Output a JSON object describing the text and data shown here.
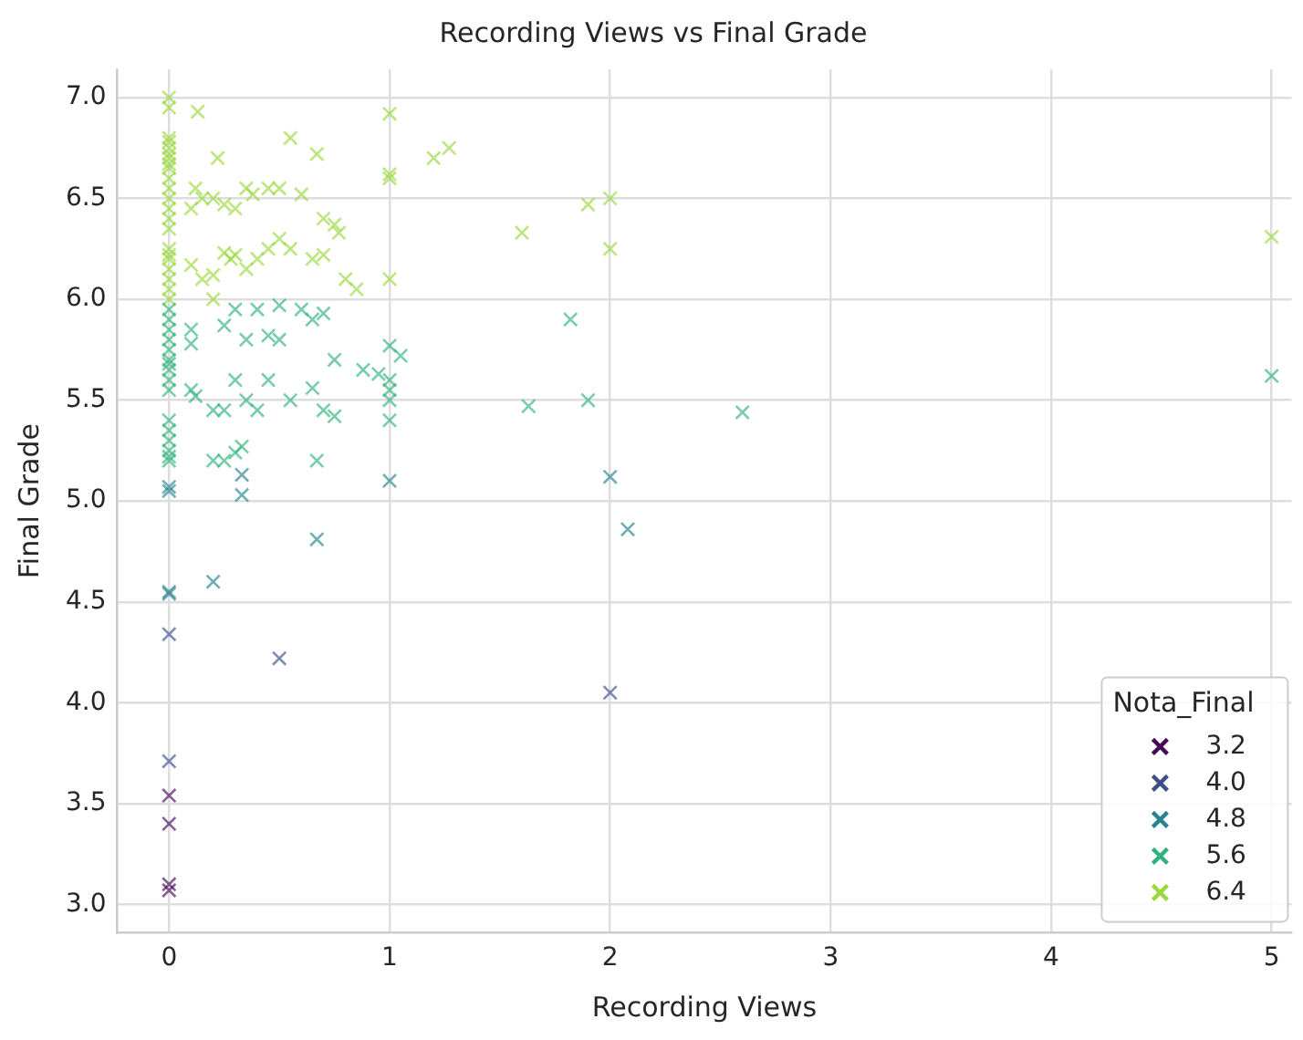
{
  "chart_data": {
    "type": "scatter",
    "title": "Recording Views vs Final Grade",
    "xlabel": "Recording Views",
    "ylabel": "Final Grade",
    "legend_title": "Nota_Final",
    "legend": "bottom right",
    "marker": "cross",
    "grid": true,
    "xlim": [
      -0.235,
      5.09
    ],
    "xticks": [
      0,
      1,
      2,
      3,
      4,
      5
    ],
    "ylim": [
      2.86,
      7.14
    ],
    "yticks": [
      {
        "value": 3,
        "label": "3.0"
      },
      3.5,
      {
        "value": 4,
        "label": "4.0"
      },
      4.5,
      {
        "value": 5,
        "label": "5.0"
      },
      5.5,
      {
        "value": 6,
        "label": "6.0"
      },
      6.5,
      {
        "value": 7,
        "label": "7.0"
      }
    ],
    "series": [
      {
        "name": "3.2",
        "color": "#46075a",
        "x": [
          0,
          0,
          0,
          0
        ],
        "values": [
          3.54,
          3.4,
          3.1,
          3.07
        ]
      },
      {
        "name": "4.0",
        "color": "#3c4f8a",
        "x": [
          0,
          0,
          0.5,
          2
        ],
        "values": [
          4.34,
          3.71,
          4.22,
          4.05
        ]
      },
      {
        "name": "4.8",
        "color": "#26828e",
        "x": [
          0,
          0,
          0,
          0,
          0.2,
          0.67,
          0.33,
          0.33,
          1,
          2,
          2.08
        ],
        "values": [
          5.07,
          5.05,
          4.55,
          4.54,
          4.6,
          4.81,
          5.13,
          5.03,
          5.1,
          5.12,
          4.86
        ]
      },
      {
        "name": "5.6",
        "color": "#31b27c",
        "x": [
          0,
          0,
          0,
          0,
          0,
          0,
          0,
          0,
          0,
          0,
          0,
          0,
          0,
          0,
          0,
          0,
          0.25,
          0.3,
          0.35,
          0.4,
          0.45,
          0.5,
          0.6,
          0.65,
          0.7,
          0.75,
          0.88,
          0.95,
          0.1,
          0.1,
          0.1,
          0.12,
          0.2,
          0.25,
          0.3,
          0.35,
          0.4,
          0.45,
          0.5,
          0.55,
          0.65,
          0.7,
          0.75,
          0.2,
          0.25,
          0.3,
          0.33,
          0.67,
          1,
          1,
          1,
          1,
          1,
          1.05,
          1.63,
          1.82,
          1.9,
          2.6,
          5
        ],
        "values": [
          5.95,
          5.9,
          5.85,
          5.8,
          5.75,
          5.7,
          5.68,
          5.65,
          5.6,
          5.55,
          5.4,
          5.35,
          5.3,
          5.25,
          5.22,
          5.2,
          5.87,
          5.95,
          5.8,
          5.95,
          5.82,
          5.97,
          5.95,
          5.9,
          5.93,
          5.7,
          5.65,
          5.63,
          5.85,
          5.78,
          5.55,
          5.52,
          5.45,
          5.45,
          5.6,
          5.5,
          5.45,
          5.6,
          5.8,
          5.5,
          5.56,
          5.45,
          5.42,
          5.2,
          5.2,
          5.24,
          5.27,
          5.2,
          5.77,
          5.6,
          5.55,
          5.5,
          5.4,
          5.72,
          5.47,
          5.9,
          5.5,
          5.44,
          5.62
        ]
      },
      {
        "name": "6.4",
        "color": "#9ad83d",
        "x": [
          0,
          0,
          0,
          0,
          0,
          0,
          0,
          0,
          0,
          0,
          0,
          0,
          0,
          0,
          0,
          0,
          0,
          0,
          0,
          0,
          0,
          0,
          0.13,
          0.1,
          0.15,
          0.12,
          0.2,
          0.25,
          0.3,
          0.35,
          0.38,
          0.45,
          0.5,
          0.55,
          0.6,
          0.67,
          0.7,
          0.75,
          0.77,
          0.22,
          0.1,
          0.15,
          0.2,
          0.25,
          0.28,
          0.3,
          0.35,
          0.4,
          0.45,
          0.5,
          0.55,
          0.65,
          0.7,
          0.8,
          0.85,
          0.2,
          1,
          1,
          1,
          1,
          1.2,
          1.27,
          1.6,
          1.9,
          2,
          2,
          5
        ],
        "values": [
          7.0,
          6.95,
          6.8,
          6.78,
          6.75,
          6.72,
          6.7,
          6.67,
          6.65,
          6.6,
          6.55,
          6.5,
          6.45,
          6.4,
          6.35,
          6.25,
          6.2,
          6.22,
          6.15,
          6.1,
          6.05,
          6.0,
          6.93,
          6.45,
          6.5,
          6.55,
          6.5,
          6.47,
          6.45,
          6.55,
          6.52,
          6.55,
          6.55,
          6.8,
          6.52,
          6.72,
          6.4,
          6.37,
          6.33,
          6.7,
          6.17,
          6.1,
          6.12,
          6.23,
          6.2,
          6.22,
          6.15,
          6.2,
          6.25,
          6.3,
          6.25,
          6.2,
          6.22,
          6.1,
          6.05,
          6.0,
          6.92,
          6.6,
          6.62,
          6.1,
          6.7,
          6.75,
          6.33,
          6.47,
          6.5,
          6.25,
          6.31
        ]
      }
    ]
  }
}
